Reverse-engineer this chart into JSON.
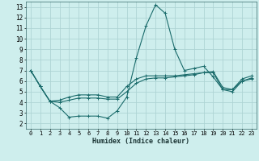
{
  "xlabel": "Humidex (Indice chaleur)",
  "bg_color": "#ceeeed",
  "grid_color": "#aed4d4",
  "line_color": "#1a6b6b",
  "xlim": [
    -0.5,
    23.5
  ],
  "ylim": [
    1.5,
    13.5
  ],
  "xticks": [
    0,
    1,
    2,
    3,
    4,
    5,
    6,
    7,
    8,
    9,
    10,
    11,
    12,
    13,
    14,
    15,
    16,
    17,
    18,
    19,
    20,
    21,
    22,
    23
  ],
  "yticks": [
    2,
    3,
    4,
    5,
    6,
    7,
    8,
    9,
    10,
    11,
    12,
    13
  ],
  "series": [
    [
      7.0,
      5.5,
      4.1,
      3.5,
      2.6,
      2.7,
      2.7,
      2.7,
      2.5,
      3.2,
      4.5,
      8.2,
      11.2,
      13.2,
      12.4,
      9.0,
      7.0,
      7.2,
      7.4,
      6.4,
      5.2,
      5.2,
      6.0,
      6.2
    ],
    [
      7.0,
      5.5,
      4.1,
      4.2,
      4.5,
      4.7,
      4.7,
      4.7,
      4.5,
      4.5,
      5.5,
      6.2,
      6.5,
      6.5,
      6.5,
      6.5,
      6.6,
      6.7,
      6.8,
      6.9,
      5.4,
      5.2,
      6.2,
      6.5
    ],
    [
      7.0,
      5.5,
      4.1,
      4.0,
      4.2,
      4.4,
      4.4,
      4.4,
      4.3,
      4.3,
      5.0,
      5.8,
      6.2,
      6.3,
      6.3,
      6.4,
      6.5,
      6.6,
      6.8,
      6.8,
      5.2,
      5.0,
      6.0,
      6.3
    ]
  ]
}
